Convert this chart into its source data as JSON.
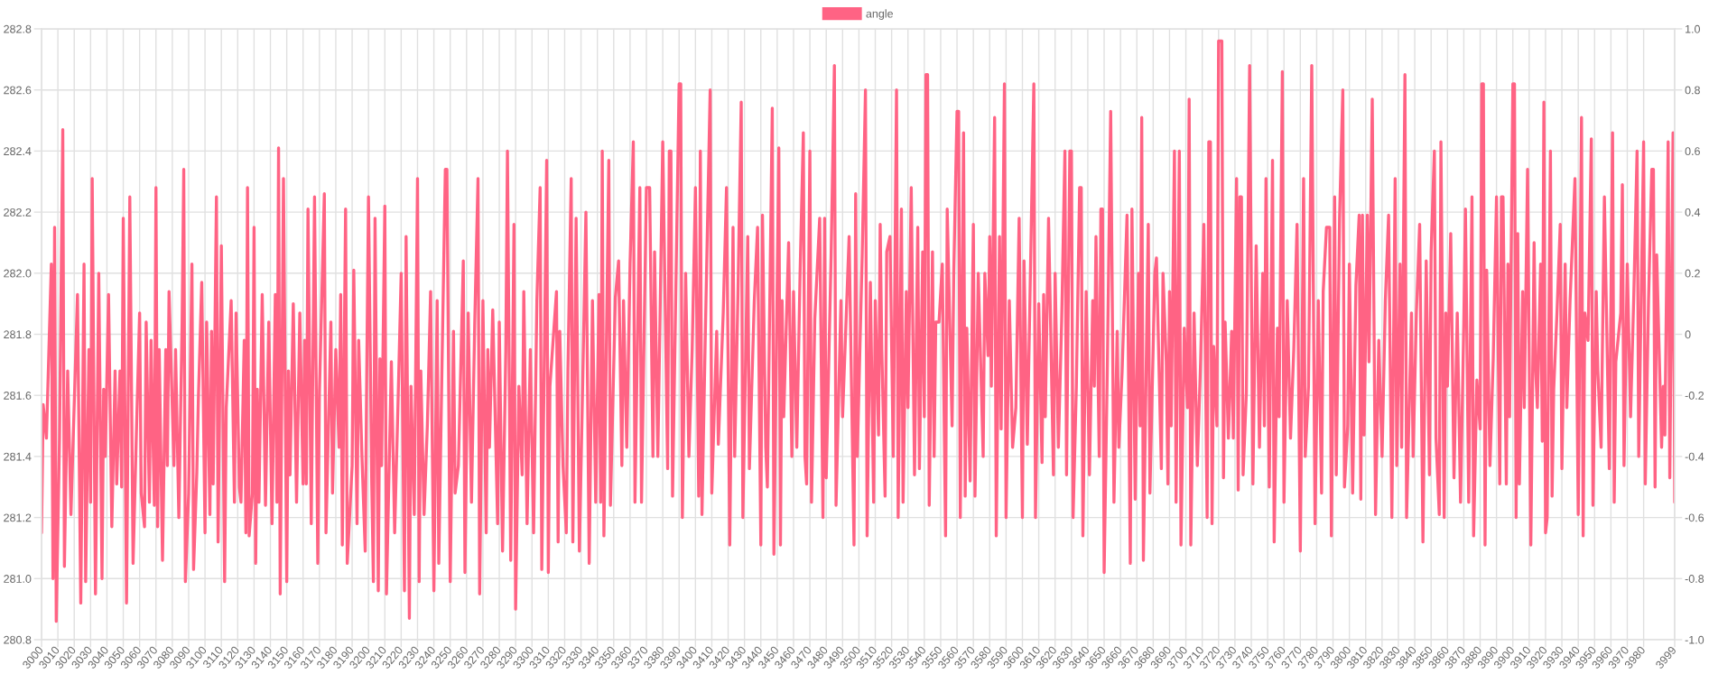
{
  "chart_data": {
    "type": "line",
    "x": [
      3000,
      3001,
      3003,
      3006,
      3007,
      3008,
      3009,
      3011,
      3013,
      3014,
      3016,
      3018,
      3022,
      3024,
      3026,
      3027,
      3029,
      3030,
      3031,
      3033,
      3035,
      3037,
      3038,
      3039,
      3041,
      3043,
      3045,
      3046,
      3048,
      3049,
      3050,
      3052,
      3054,
      3056,
      3058,
      3060,
      3061,
      3063,
      3064,
      3066,
      3067,
      3069,
      3070,
      3071,
      3072,
      3074,
      3076,
      3077,
      3078,
      3081,
      3082,
      3084,
      3086,
      3087,
      3088,
      3090,
      3092,
      3093,
      3095,
      3096,
      3098,
      3100,
      3101,
      3103,
      3104,
      3105,
      3107,
      3108,
      3110,
      3112,
      3113,
      3116,
      3118,
      3119,
      3121,
      3122,
      3124,
      3125,
      3126,
      3127,
      3129,
      3130,
      3131,
      3132,
      3133,
      3135,
      3137,
      3139,
      3141,
      3143,
      3144,
      3145,
      3146,
      3148,
      3150,
      3151,
      3152,
      3154,
      3156,
      3158,
      3160,
      3161,
      3162,
      3163,
      3165,
      3167,
      3169,
      3170,
      3173,
      3174,
      3177,
      3178,
      3180,
      3182,
      3183,
      3184,
      3186,
      3187,
      3190,
      3191,
      3193,
      3194,
      3196,
      3198,
      3199,
      3200,
      3202,
      3203,
      3204,
      3206,
      3207,
      3208,
      3210,
      3211,
      3214,
      3216,
      3218,
      3220,
      3222,
      3223,
      3225,
      3226,
      3228,
      3230,
      3231,
      3232,
      3234,
      3236,
      3238,
      3240,
      3242,
      3243,
      3245,
      3247,
      3248,
      3250,
      3252,
      3253,
      3255,
      3258,
      3259,
      3261,
      3263,
      3265,
      3267,
      3268,
      3270,
      3272,
      3273,
      3274,
      3276,
      3279,
      3280,
      3282,
      3284,
      3285,
      3287,
      3289,
      3290,
      3292,
      3294,
      3295,
      3297,
      3299,
      3301,
      3303,
      3305,
      3306,
      3309,
      3310,
      3311,
      3315,
      3316,
      3317,
      3319,
      3321,
      3322,
      3324,
      3325,
      3327,
      3329,
      3331,
      3333,
      3335,
      3337,
      3339,
      3341,
      3342,
      3343,
      3344,
      3347,
      3348,
      3351,
      3353,
      3355,
      3356,
      3358,
      3360,
      3362,
      3363,
      3366,
      3367,
      3370,
      3372,
      3374,
      3375,
      3377,
      3380,
      3383,
      3384,
      3385,
      3386,
      3390,
      3391,
      3392,
      3394,
      3396,
      3398,
      3400,
      3402,
      3403,
      3404,
      3406,
      3409,
      3410,
      3413,
      3414,
      3417,
      3419,
      3421,
      3423,
      3424,
      3426,
      3428,
      3429,
      3432,
      3433,
      3436,
      3438,
      3440,
      3441,
      3443,
      3444,
      3447,
      3448,
      3451,
      3452,
      3453,
      3454,
      3457,
      3459,
      3460,
      3462,
      3464,
      3466,
      3467,
      3468,
      3470,
      3471,
      3473,
      3476,
      3478,
      3479,
      3480,
      3483,
      3485,
      3486,
      3489,
      3490,
      3494,
      3497,
      3498,
      3499,
      3502,
      3504,
      3505,
      3507,
      3509,
      3510,
      3512,
      3513,
      3514,
      3516,
      3517,
      3519,
      3521,
      3523,
      3524,
      3526,
      3527,
      3529,
      3530,
      3532,
      3534,
      3536,
      3537,
      3539,
      3540,
      3541,
      3542,
      3543,
      3545,
      3546,
      3547,
      3549,
      3551,
      3553,
      3554,
      3557,
      3558,
      3560,
      3561,
      3562,
      3564,
      3565,
      3566,
      3568,
      3570,
      3571,
      3573,
      3576,
      3577,
      3579,
      3580,
      3581,
      3583,
      3584,
      3586,
      3587,
      3589,
      3590,
      3592,
      3594,
      3596,
      3598,
      3600,
      3601,
      3603,
      3605,
      3607,
      3608,
      3610,
      3612,
      3613,
      3614,
      3616,
      3619,
      3620,
      3622,
      3624,
      3626,
      3627,
      3629,
      3630,
      3631,
      3633,
      3635,
      3636,
      3637,
      3639,
      3641,
      3643,
      3644,
      3645,
      3647,
      3648,
      3649,
      3650,
      3652,
      3654,
      3656,
      3658,
      3659,
      3661,
      3664,
      3666,
      3667,
      3669,
      3671,
      3672,
      3673,
      3674,
      3677,
      3678,
      3681,
      3682,
      3685,
      3686,
      3688,
      3689,
      3690,
      3691,
      3693,
      3694,
      3696,
      3697,
      3699,
      3701,
      3702,
      3703,
      3705,
      3707,
      3709,
      3711,
      3713,
      3714,
      3715,
      3716,
      3717,
      3719,
      3720,
      3722,
      3723,
      3724,
      3726,
      3728,
      3729,
      3731,
      3732,
      3733,
      3734,
      3735,
      3737,
      3739,
      3741,
      3743,
      3745,
      3747,
      3748,
      3749,
      3751,
      3753,
      3754,
      3756,
      3757,
      3759,
      3760,
      3762,
      3764,
      3766,
      3768,
      3770,
      3772,
      3773,
      3775,
      3777,
      3779,
      3781,
      3783,
      3784,
      3786,
      3788,
      3789,
      3791,
      3792,
      3794,
      3796,
      3797,
      3799,
      3800,
      3802,
      3804,
      3806,
      3807,
      3808,
      3809,
      3811,
      3812,
      3814,
      3816,
      3818,
      3820,
      3822,
      3824,
      3826,
      3828,
      3829,
      3831,
      3832,
      3834,
      3835,
      3838,
      3839,
      3841,
      3843,
      3845,
      3847,
      3849,
      3850,
      3852,
      3853,
      3855,
      3856,
      3858,
      3859,
      3860,
      3862,
      3864,
      3866,
      3868,
      3870,
      3871,
      3873,
      3875,
      3876,
      3878,
      3880,
      3881,
      3882,
      3883,
      3884,
      3886,
      3888,
      3890,
      3892,
      3893,
      3894,
      3896,
      3897,
      3898,
      3900,
      3901,
      3902,
      3903,
      3904,
      3906,
      3907,
      3909,
      3911,
      3913,
      3914,
      3915,
      3917,
      3918,
      3919,
      3920,
      3921,
      3923,
      3924,
      3925,
      3927,
      3929,
      3930,
      3932,
      3933,
      3935,
      3938,
      3940,
      3942,
      3943,
      3944,
      3946,
      3948,
      3949,
      3951,
      3952,
      3954,
      3956,
      3959,
      3961,
      3962,
      3963,
      3966,
      3967,
      3968,
      3970,
      3972,
      3974,
      3976,
      3977,
      3980,
      3981,
      3983,
      3985,
      3986,
      3987,
      3988,
      3991,
      3992,
      3993,
      3995,
      3996,
      3998,
      3999
    ],
    "series": [
      {
        "name": "angle",
        "color": "#ff6384",
        "values": [
          281.15,
          281.57,
          281.46,
          282.03,
          281.0,
          282.15,
          280.86,
          281.46,
          282.47,
          281.04,
          281.68,
          281.21,
          281.93,
          280.92,
          282.03,
          280.99,
          281.75,
          281.25,
          282.31,
          280.95,
          282.0,
          281.0,
          281.62,
          281.4,
          281.93,
          281.17,
          281.68,
          281.31,
          281.68,
          281.3,
          282.18,
          280.92,
          282.25,
          281.05,
          281.47,
          281.87,
          281.28,
          281.17,
          281.84,
          281.25,
          281.78,
          281.24,
          282.28,
          281.17,
          281.75,
          281.06,
          281.75,
          281.37,
          281.94,
          281.37,
          281.75,
          281.2,
          281.84,
          282.34,
          280.99,
          281.28,
          282.03,
          281.03,
          281.35,
          281.6,
          281.97,
          281.15,
          281.84,
          281.21,
          281.81,
          281.31,
          282.25,
          281.12,
          282.09,
          280.99,
          281.56,
          281.91,
          281.25,
          281.87,
          281.3,
          281.25,
          281.78,
          281.15,
          282.28,
          281.14,
          281.28,
          282.15,
          281.05,
          281.62,
          281.25,
          281.93,
          281.24,
          281.84,
          281.18,
          281.93,
          281.25,
          282.41,
          280.95,
          282.31,
          280.99,
          281.68,
          281.34,
          281.9,
          281.25,
          281.87,
          281.31,
          281.78,
          281.31,
          282.21,
          281.18,
          282.25,
          281.05,
          281.61,
          282.26,
          281.15,
          281.84,
          281.28,
          281.75,
          281.43,
          281.93,
          281.11,
          282.21,
          281.05,
          281.37,
          282.01,
          281.18,
          281.78,
          281.4,
          281.09,
          281.71,
          282.25,
          281.31,
          280.99,
          282.18,
          280.96,
          281.72,
          281.37,
          282.22,
          280.95,
          281.71,
          281.15,
          281.56,
          282.0,
          280.96,
          282.12,
          280.87,
          281.63,
          281.21,
          282.31,
          280.99,
          281.68,
          281.21,
          281.5,
          281.94,
          280.96,
          281.91,
          281.05,
          281.71,
          282.34,
          282.34,
          280.99,
          281.81,
          281.28,
          281.37,
          282.04,
          281.02,
          281.87,
          281.25,
          281.84,
          282.31,
          280.95,
          281.91,
          281.15,
          281.75,
          281.43,
          281.88,
          281.18,
          281.84,
          281.09,
          281.75,
          282.4,
          281.06,
          282.16,
          280.9,
          281.63,
          281.34,
          281.94,
          281.18,
          281.75,
          281.15,
          281.91,
          282.28,
          281.03,
          282.37,
          281.02,
          281.63,
          281.94,
          281.12,
          281.81,
          281.37,
          281.15,
          281.68,
          282.31,
          281.12,
          282.18,
          281.09,
          281.63,
          282.2,
          281.05,
          281.91,
          281.25,
          281.93,
          281.25,
          282.4,
          281.14,
          282.37,
          281.24,
          281.92,
          282.04,
          281.37,
          281.91,
          281.43,
          282.03,
          282.43,
          281.25,
          282.28,
          281.25,
          282.28,
          282.28,
          281.4,
          282.07,
          281.4,
          282.43,
          281.36,
          282.4,
          282.4,
          281.27,
          282.62,
          282.62,
          281.2,
          282.0,
          281.4,
          281.75,
          282.28,
          281.27,
          282.4,
          281.21,
          281.79,
          282.6,
          281.28,
          281.81,
          281.44,
          281.87,
          282.28,
          281.11,
          282.15,
          281.4,
          281.93,
          282.56,
          281.2,
          282.12,
          281.36,
          281.91,
          282.15,
          281.11,
          282.19,
          281.43,
          281.3,
          282.54,
          281.08,
          282.41,
          281.11,
          281.91,
          281.53,
          282.1,
          281.4,
          281.94,
          281.43,
          282.0,
          282.46,
          281.4,
          281.31,
          282.4,
          281.25,
          281.85,
          282.18,
          281.2,
          282.18,
          281.33,
          282.06,
          282.68,
          281.24,
          281.91,
          281.53,
          282.12,
          281.11,
          282.26,
          281.4,
          282.06,
          282.6,
          281.14,
          281.97,
          281.25,
          281.91,
          281.47,
          282.16,
          281.75,
          281.27,
          282.07,
          282.12,
          281.4,
          282.6,
          281.2,
          282.21,
          281.25,
          281.94,
          281.56,
          282.28,
          281.34,
          282.15,
          281.36,
          282.07,
          281.53,
          282.65,
          282.65,
          281.24,
          282.07,
          281.4,
          281.84,
          281.84,
          282.03,
          281.14,
          282.21,
          281.5,
          282.0,
          282.53,
          282.53,
          281.2,
          282.46,
          281.27,
          281.82,
          281.32,
          282.16,
          281.27,
          282.0,
          281.4,
          282.0,
          281.73,
          282.12,
          281.63,
          282.51,
          281.14,
          282.12,
          281.49,
          282.62,
          281.2,
          281.91,
          281.43,
          281.56,
          282.18,
          281.2,
          282.04,
          281.44,
          282.03,
          282.62,
          281.2,
          281.9,
          281.38,
          281.93,
          281.53,
          282.18,
          281.34,
          282.0,
          281.43,
          281.84,
          282.4,
          281.34,
          282.4,
          282.4,
          281.2,
          281.63,
          282.28,
          282.28,
          281.14,
          281.94,
          281.34,
          281.91,
          281.63,
          282.12,
          281.4,
          282.21,
          282.21,
          281.02,
          281.71,
          282.53,
          281.25,
          281.81,
          281.43,
          281.68,
          282.19,
          281.05,
          282.21,
          281.26,
          282.0,
          281.5,
          282.51,
          281.06,
          282.16,
          281.28,
          282.0,
          282.05,
          281.36,
          282.0,
          281.71,
          281.31,
          281.94,
          281.5,
          282.4,
          281.25,
          282.4,
          281.11,
          281.82,
          281.56,
          282.57,
          281.11,
          281.87,
          281.37,
          281.71,
          282.16,
          281.2,
          282.43,
          282.43,
          281.18,
          281.76,
          281.5,
          282.76,
          282.76,
          281.33,
          281.84,
          281.46,
          281.81,
          281.46,
          282.31,
          281.29,
          282.25,
          282.25,
          281.34,
          281.61,
          282.68,
          281.31,
          282.09,
          281.43,
          282.0,
          281.5,
          282.31,
          281.3,
          282.37,
          281.12,
          281.82,
          281.53,
          282.66,
          281.25,
          281.91,
          281.46,
          281.75,
          282.16,
          281.09,
          282.31,
          281.4,
          281.63,
          282.68,
          281.18,
          281.91,
          281.28,
          281.94,
          282.15,
          282.15,
          281.14,
          282.25,
          281.34,
          282.18,
          282.6,
          281.3,
          281.5,
          282.03,
          281.28,
          281.96,
          282.19,
          281.26,
          282.19,
          281.47,
          282.19,
          281.71,
          282.57,
          281.21,
          281.78,
          281.4,
          281.91,
          282.19,
          281.2,
          282.31,
          281.37,
          282.03,
          281.43,
          282.65,
          281.2,
          281.87,
          281.4,
          281.87,
          282.16,
          281.12,
          282.04,
          281.34,
          282.07,
          282.4,
          281.46,
          281.21,
          282.43,
          281.2,
          281.87,
          281.63,
          282.13,
          281.33,
          281.87,
          281.25,
          281.84,
          282.21,
          281.25,
          282.25,
          281.14,
          281.65,
          281.49,
          282.62,
          282.62,
          281.11,
          282.01,
          281.37,
          281.72,
          282.25,
          281.31,
          282.25,
          282.25,
          281.31,
          282.03,
          281.53,
          282.62,
          282.62,
          281.2,
          282.13,
          281.31,
          281.94,
          281.56,
          282.34,
          281.11,
          282.1,
          281.68,
          281.56,
          282.03,
          281.45,
          282.56,
          281.15,
          281.2,
          282.4,
          281.27,
          281.62,
          281.87,
          282.16,
          281.36,
          282.03,
          281.56,
          281.91,
          282.31,
          281.21,
          282.51,
          281.14,
          281.87,
          281.78,
          282.44,
          281.24,
          281.94,
          281.68,
          281.43,
          282.25,
          281.36,
          282.46,
          281.25,
          281.71,
          281.87,
          282.29,
          281.37,
          282.03,
          281.53,
          281.93,
          282.4,
          281.4,
          282.43,
          281.31,
          281.91,
          282.34,
          282.34,
          281.3,
          282.06,
          281.43,
          281.63,
          281.47,
          282.43,
          281.33,
          282.46,
          281.25
        ]
      }
    ],
    "xlim": [
      3000,
      3999
    ],
    "xticks": [
      3000,
      3010,
      3020,
      3030,
      3040,
      3050,
      3060,
      3070,
      3080,
      3090,
      3100,
      3110,
      3120,
      3130,
      3140,
      3150,
      3160,
      3170,
      3180,
      3190,
      3200,
      3210,
      3220,
      3230,
      3240,
      3250,
      3260,
      3270,
      3280,
      3290,
      3300,
      3310,
      3320,
      3330,
      3340,
      3350,
      3360,
      3370,
      3380,
      3390,
      3400,
      3410,
      3420,
      3430,
      3440,
      3450,
      3460,
      3470,
      3480,
      3490,
      3500,
      3510,
      3520,
      3530,
      3540,
      3550,
      3560,
      3570,
      3580,
      3590,
      3600,
      3610,
      3620,
      3630,
      3640,
      3650,
      3660,
      3670,
      3680,
      3690,
      3700,
      3710,
      3720,
      3730,
      3740,
      3750,
      3760,
      3770,
      3780,
      3790,
      3800,
      3810,
      3820,
      3830,
      3840,
      3850,
      3860,
      3870,
      3880,
      3890,
      3900,
      3910,
      3920,
      3930,
      3940,
      3950,
      3960,
      3970,
      3980,
      3999
    ],
    "ylim": [
      280.8,
      282.8
    ],
    "yticks": [
      280.8,
      {
        "value": 281,
        "label": "281.0"
      },
      281.2,
      281.4,
      281.6,
      281.8,
      {
        "value": 282,
        "label": "282.0"
      },
      282.2,
      282.4,
      282.6,
      282.8
    ],
    "y2lim": [
      -1,
      1
    ],
    "y2ticks": [
      {
        "value": -1,
        "label": "-1.0"
      },
      -0.8,
      -0.6,
      -0.4,
      -0.2,
      0,
      0.2,
      0.4,
      0.6,
      0.8,
      {
        "value": 1,
        "label": "1.0"
      }
    ],
    "grid": true,
    "legend": "top"
  }
}
